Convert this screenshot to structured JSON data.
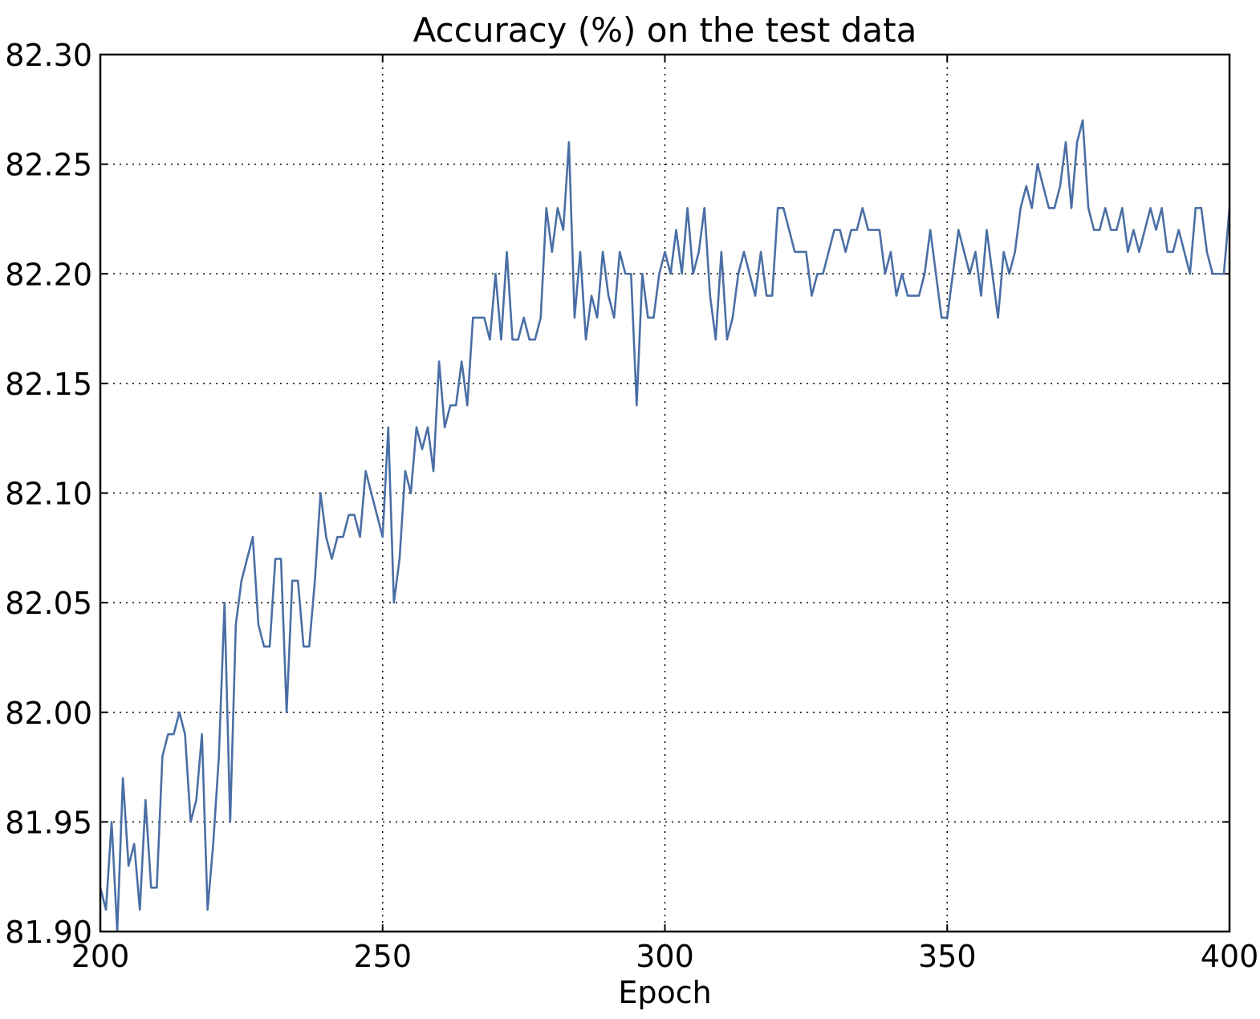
{
  "chart_data": {
    "type": "line",
    "title": "Accuracy (%) on the test data",
    "xlabel": "Epoch",
    "ylabel": "",
    "xlim": [
      200,
      400
    ],
    "ylim": [
      81.9,
      82.3
    ],
    "xticks": [
      {
        "value": 200,
        "label": "200"
      },
      {
        "value": 250,
        "label": "250"
      },
      {
        "value": 300,
        "label": "300"
      },
      {
        "value": 350,
        "label": "350"
      },
      {
        "value": 400,
        "label": "400"
      }
    ],
    "yticks": [
      {
        "value": 81.9,
        "label": "81.90"
      },
      {
        "value": 81.95,
        "label": "81.95"
      },
      {
        "value": 82.0,
        "label": "82.00"
      },
      {
        "value": 82.05,
        "label": "82.05"
      },
      {
        "value": 82.1,
        "label": "82.10"
      },
      {
        "value": 82.15,
        "label": "82.15"
      },
      {
        "value": 82.2,
        "label": "82.20"
      },
      {
        "value": 82.25,
        "label": "82.25"
      },
      {
        "value": 82.3,
        "label": "82.30"
      }
    ],
    "grid": true,
    "line_color": "#4a6fa5",
    "x_start": 200,
    "x_step": 1,
    "values": [
      81.92,
      81.91,
      81.95,
      81.9,
      81.97,
      81.93,
      81.94,
      81.91,
      81.96,
      81.92,
      81.92,
      81.98,
      81.99,
      81.99,
      82.0,
      81.99,
      81.95,
      81.96,
      81.99,
      81.91,
      81.94,
      81.98,
      82.05,
      81.95,
      82.04,
      82.06,
      82.07,
      82.08,
      82.04,
      82.03,
      82.03,
      82.07,
      82.07,
      82.0,
      82.06,
      82.06,
      82.03,
      82.03,
      82.06,
      82.1,
      82.08,
      82.07,
      82.08,
      82.08,
      82.09,
      82.09,
      82.08,
      82.11,
      82.1,
      82.09,
      82.08,
      82.13,
      82.05,
      82.07,
      82.11,
      82.1,
      82.13,
      82.12,
      82.13,
      82.11,
      82.16,
      82.13,
      82.14,
      82.14,
      82.16,
      82.14,
      82.18,
      82.18,
      82.18,
      82.17,
      82.2,
      82.17,
      82.21,
      82.17,
      82.17,
      82.18,
      82.17,
      82.17,
      82.18,
      82.23,
      82.21,
      82.23,
      82.22,
      82.26,
      82.18,
      82.21,
      82.17,
      82.19,
      82.18,
      82.21,
      82.19,
      82.18,
      82.21,
      82.2,
      82.2,
      82.14,
      82.2,
      82.18,
      82.18,
      82.2,
      82.21,
      82.2,
      82.22,
      82.2,
      82.23,
      82.2,
      82.21,
      82.23,
      82.19,
      82.17,
      82.21,
      82.17,
      82.18,
      82.2,
      82.21,
      82.2,
      82.19,
      82.21,
      82.19,
      82.19,
      82.23,
      82.23,
      82.22,
      82.21,
      82.21,
      82.21,
      82.19,
      82.2,
      82.2,
      82.21,
      82.22,
      82.22,
      82.21,
      82.22,
      82.22,
      82.23,
      82.22,
      82.22,
      82.22,
      82.2,
      82.21,
      82.19,
      82.2,
      82.19,
      82.19,
      82.19,
      82.2,
      82.22,
      82.2,
      82.18,
      82.18,
      82.2,
      82.22,
      82.21,
      82.2,
      82.21,
      82.19,
      82.22,
      82.2,
      82.18,
      82.21,
      82.2,
      82.21,
      82.23,
      82.24,
      82.23,
      82.25,
      82.24,
      82.23,
      82.23,
      82.24,
      82.26,
      82.23,
      82.26,
      82.27,
      82.23,
      82.22,
      82.22,
      82.23,
      82.22,
      82.22,
      82.23,
      82.21,
      82.22,
      82.21,
      82.22,
      82.23,
      82.22,
      82.23,
      82.21,
      82.21,
      82.22,
      82.21,
      82.2,
      82.23,
      82.23,
      82.21,
      82.2,
      82.2,
      82.2,
      82.23
    ]
  }
}
